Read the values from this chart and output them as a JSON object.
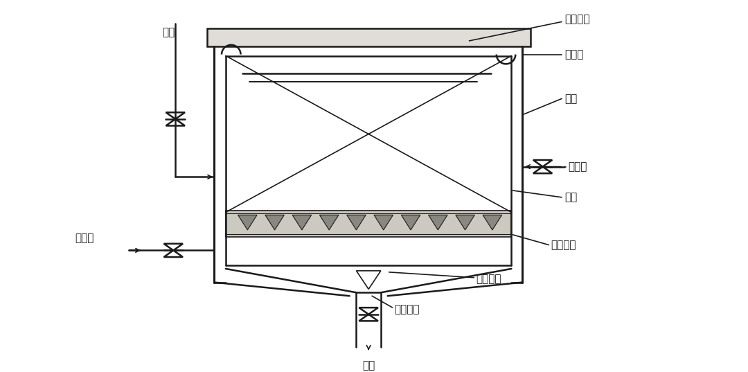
{
  "bg_color": "#ffffff",
  "line_color": "#1a1a1a",
  "labels": {
    "kongqi": "空气",
    "wendingshui": "稳定水层",
    "chushui": "出水渠",
    "chiti": "池体",
    "chulishui": "处理水",
    "tianl": "填料",
    "geshan_zhijia": "格栅支架",
    "buqi_zhuangzhi": "布气装置",
    "jinshui_zhuangzhi": "进水装置",
    "paini": "排泥",
    "yuanwushui": "原污水"
  }
}
